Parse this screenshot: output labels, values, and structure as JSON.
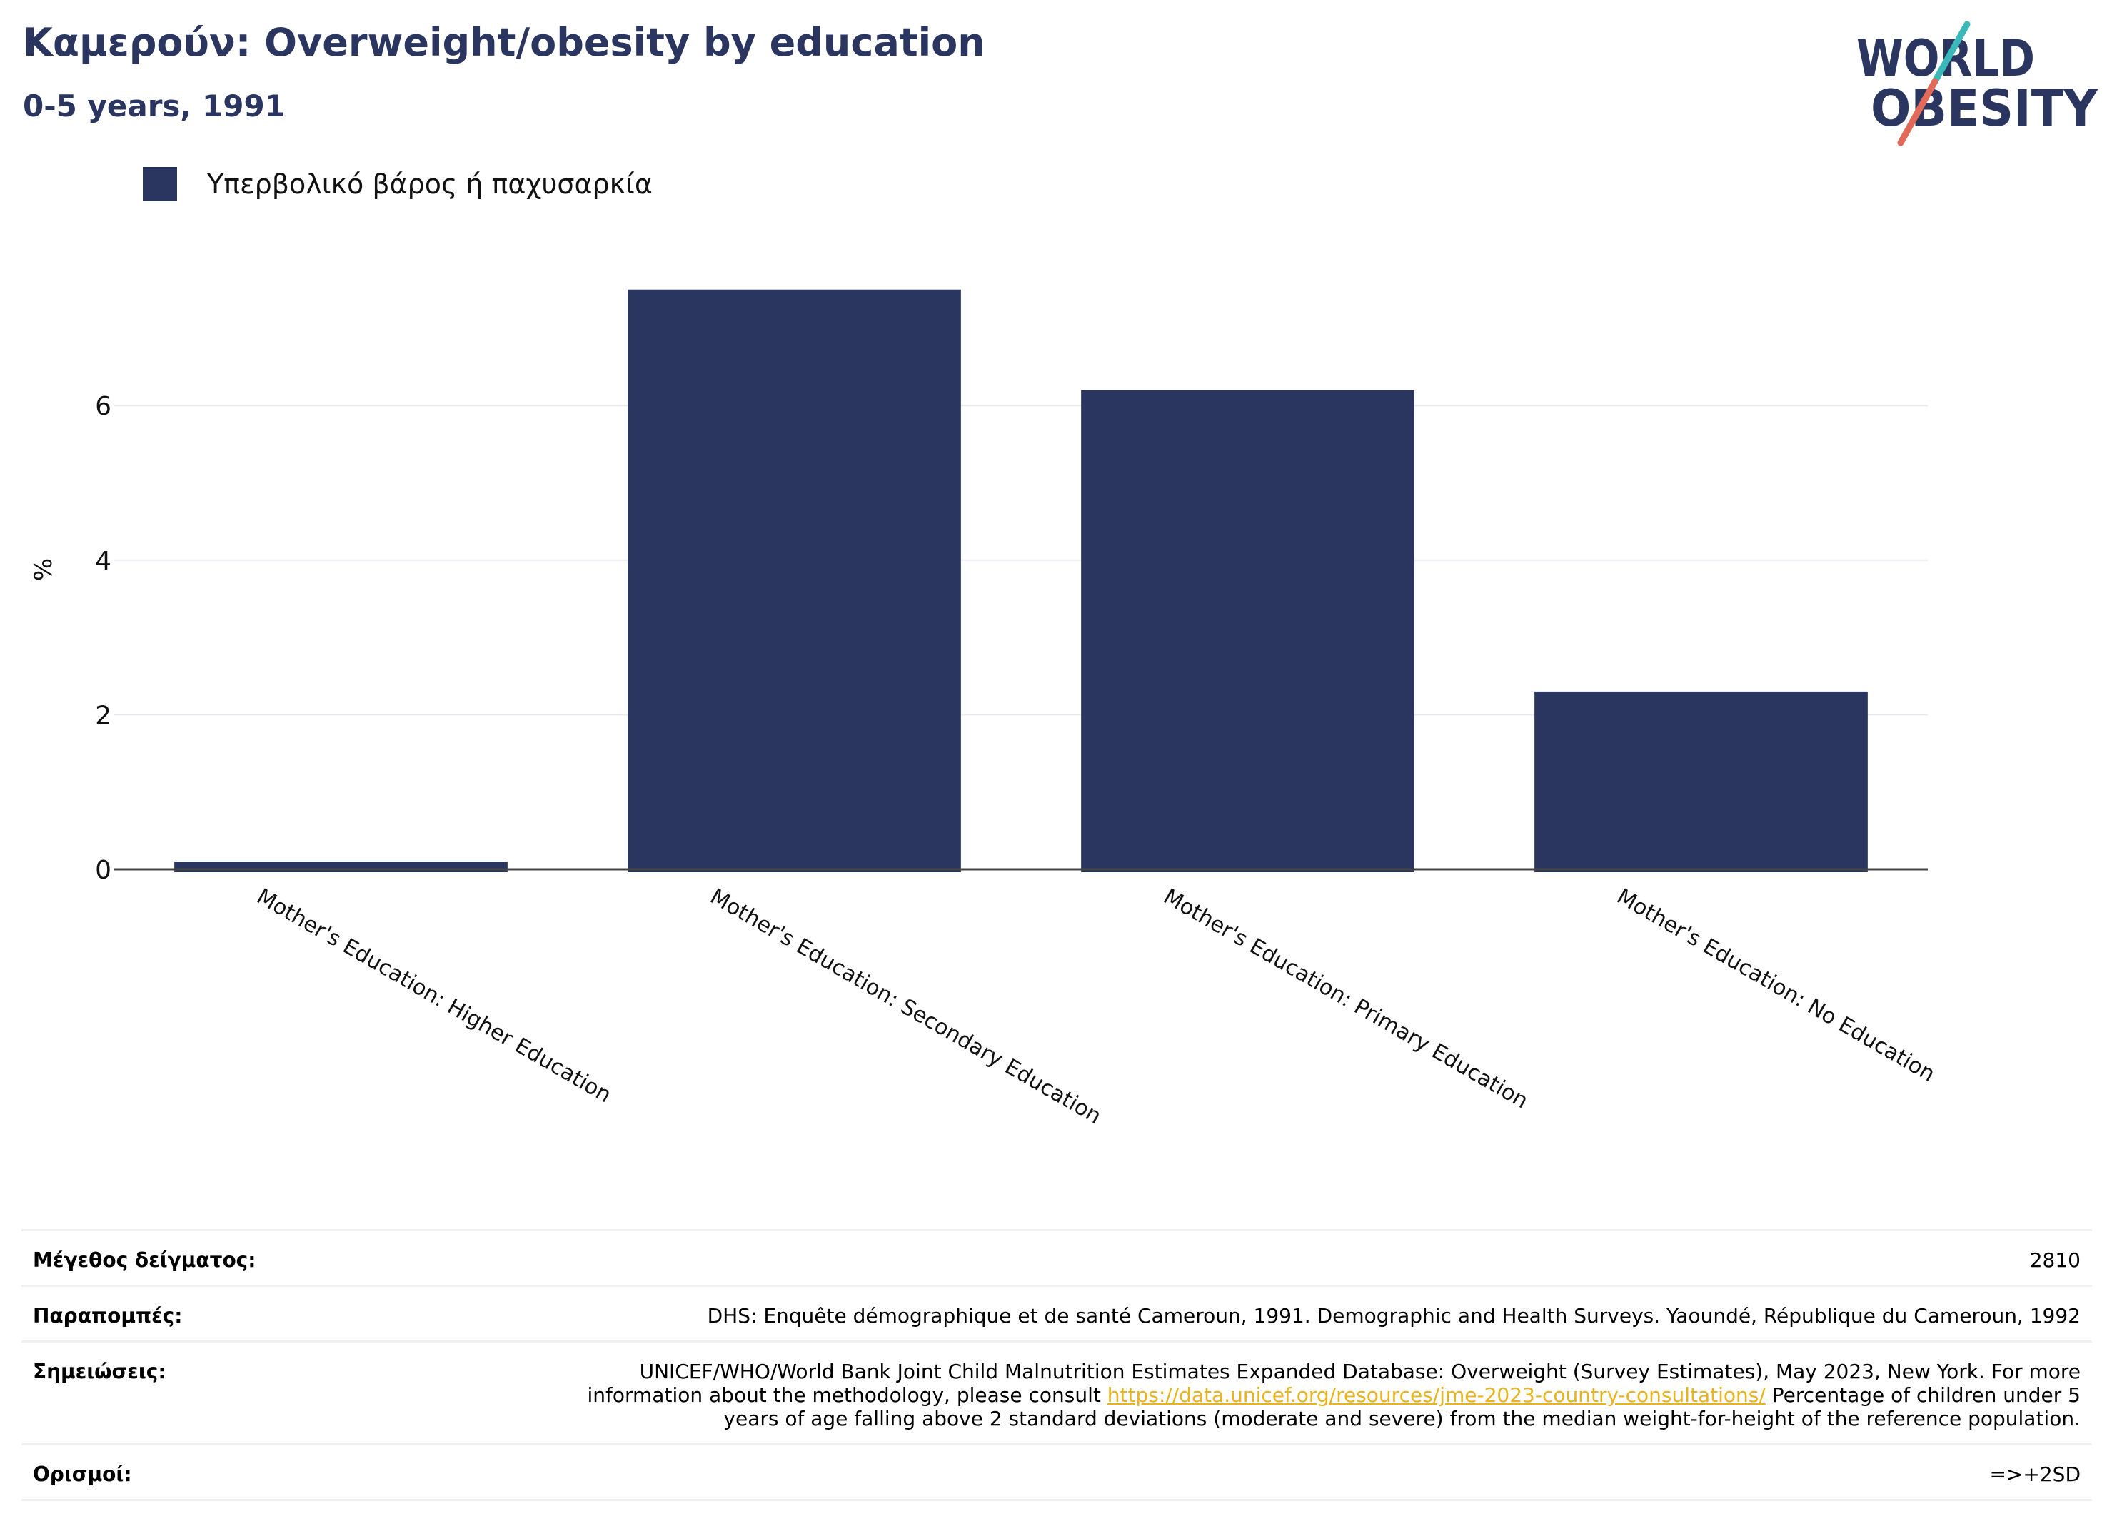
{
  "header": {
    "title": "Καμερούν: Overweight/obesity by education",
    "subtitle": "0-5 years, 1991"
  },
  "logo": {
    "line1": "WORLD",
    "line2": "OBESITY",
    "text_color": "#2b3660",
    "slash_color_top": "#3bb8b9",
    "slash_color_bottom": "#e26a59"
  },
  "legend": {
    "label": "Υπερβολικό βάρος ή παχυσαρκία",
    "color": "#2b3660"
  },
  "chart_data": {
    "type": "bar",
    "categories": [
      "Mother's Education: Higher Education",
      "Mother's Education: Secondary Education",
      "Mother's Education: Primary Education",
      "Mother's Education: No Education"
    ],
    "series": [
      {
        "name": "Υπερβολικό βάρος ή παχυσαρκία",
        "values": [
          0.1,
          7.5,
          6.2,
          2.3
        ]
      }
    ],
    "ylabel": "%",
    "yticks": [
      0,
      2,
      4,
      6
    ],
    "ylim": [
      0,
      7.5
    ],
    "grid": true,
    "legend_position": "top-left",
    "bar_color": "#2b3660"
  },
  "footer": {
    "sample_size_label": "Μέγεθος δείγματος:",
    "sample_size_value": "2810",
    "references_label": "Παραπομπές:",
    "references_value": "DHS: Enquête démographique et de santé Cameroun, 1991. Demographic and Health Surveys. Yaoundé, République du Cameroun, 1992",
    "notes_label": "Σημειώσεις:",
    "notes_before": "UNICEF/WHO/World Bank Joint Child Malnutrition Estimates Expanded Database: Overweight (Survey Estimates), May 2023, New York. For more information about the methodology, please consult",
    "notes_link": "https://data.unicef.org/resources/jme-2023-country-consultations/",
    "notes_after": "Percentage of children under 5 years of age falling above 2 standard deviations (moderate and severe) from the median weight-for-height of the reference population.",
    "definitions_label": "Ορισμοί:",
    "definitions_value": "=>+2SD"
  }
}
